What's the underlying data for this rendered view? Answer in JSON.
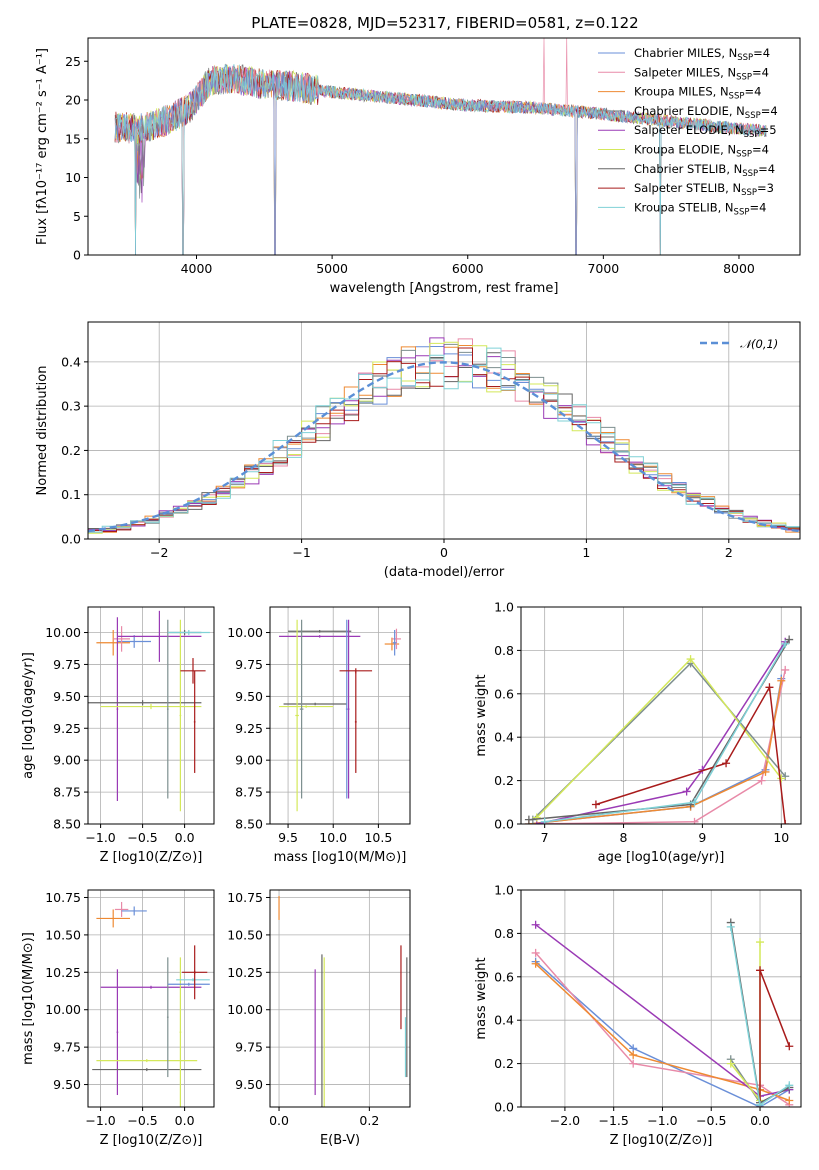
{
  "figure_title": "PLATE=0828, MJD=52317, FIBERID=0581, z=0.122",
  "colors": [
    "#6a8fd8",
    "#e88aa8",
    "#ee8a33",
    "#7d8f8f",
    "#9a3ab5",
    "#d4e85a",
    "#666666",
    "#a81b1b",
    "#7fd1d6"
  ],
  "chart_data": [
    {
      "id": "spectrum",
      "type": "line",
      "xlabel": "wavelength [Angstrom, rest frame]",
      "ylabel": "Flux [fλ10⁻¹⁷ erg cm⁻² s⁻¹ A⁻¹]",
      "xlim": [
        3200,
        8450
      ],
      "ylim": [
        0,
        28
      ],
      "xticks": [
        4000,
        5000,
        6000,
        7000,
        8000
      ],
      "yticks": [
        0,
        5,
        10,
        15,
        20,
        25
      ],
      "grid": false,
      "legend_position": "top-right",
      "legend": [
        {
          "name": "Chabrier MILES, N",
          "sub": "SSP",
          "val": "=4"
        },
        {
          "name": "Salpeter MILES, N",
          "sub": "SSP",
          "val": "=4"
        },
        {
          "name": "Kroupa MILES, N",
          "sub": "SSP",
          "val": "=4"
        },
        {
          "name": "Chabrier ELODIE, N",
          "sub": "SSP",
          "val": "=4"
        },
        {
          "name": "Salpeter ELODIE, N",
          "sub": "SSP",
          "val": "=5"
        },
        {
          "name": "Kroupa ELODIE, N",
          "sub": "SSP",
          "val": "=4"
        },
        {
          "name": "Chabrier STELIB, N",
          "sub": "SSP",
          "val": "=4"
        },
        {
          "name": "Salpeter STELIB, N",
          "sub": "SSP",
          "val": "=3"
        },
        {
          "name": "Kroupa STELIB, N",
          "sub": "SSP",
          "val": "=4"
        }
      ],
      "continuum": [
        [
          3400,
          16.5
        ],
        [
          3600,
          16.3
        ],
        [
          3800,
          17.5
        ],
        [
          3950,
          19
        ],
        [
          4100,
          22.5
        ],
        [
          4300,
          22.7
        ],
        [
          4500,
          22
        ],
        [
          4700,
          21.8
        ],
        [
          5000,
          21
        ],
        [
          5300,
          20.5
        ],
        [
          5600,
          20
        ],
        [
          6000,
          19.3
        ],
        [
          6500,
          19
        ],
        [
          7000,
          18.2
        ],
        [
          7500,
          17.2
        ],
        [
          8000,
          16.3
        ],
        [
          8200,
          16
        ]
      ],
      "absorption": [
        [
          3550,
          0
        ],
        [
          3900,
          0
        ],
        [
          4580,
          0
        ],
        [
          6800,
          0
        ],
        [
          7420,
          0
        ]
      ],
      "emission": [
        [
          6563,
          28
        ],
        [
          6730,
          28
        ]
      ]
    },
    {
      "id": "residuals",
      "type": "line",
      "xlabel": "(data-model)/error",
      "ylabel": "Normed distribution",
      "xlim": [
        -2.5,
        2.5
      ],
      "ylim": [
        0,
        0.49
      ],
      "xticks": [
        -2,
        -1,
        0,
        1,
        2
      ],
      "yticks": [
        0.0,
        0.1,
        0.2,
        0.3,
        0.4
      ],
      "grid": true,
      "legend_position": "top-right",
      "gauss_label": "𝒩(0,1)"
    },
    {
      "id": "age_vs_Z",
      "type": "scatter",
      "xlabel": "Z [log10(Z/Z⊙)]",
      "ylabel": "age  [log10(age/yr)]",
      "xlim": [
        -1.15,
        0.35
      ],
      "ylim": [
        8.5,
        10.2
      ],
      "xticks": [
        -1.0,
        -0.5,
        0.0
      ],
      "yticks": [
        8.5,
        8.75,
        9.0,
        9.25,
        9.5,
        9.75,
        10.0
      ],
      "grid": true,
      "points": [
        {
          "s": 0,
          "x": -0.6,
          "xe": 0.2,
          "y": 9.93,
          "ye": 0.05
        },
        {
          "s": 2,
          "x": -0.85,
          "xe": 0.2,
          "y": 9.92,
          "ye": 0.1
        },
        {
          "s": 1,
          "x": -0.75,
          "xe": 0.1,
          "y": 9.95,
          "ye": 0.1
        },
        {
          "s": 4,
          "x": -0.3,
          "xe": 0.5,
          "y": 9.97,
          "ye": 0.2
        },
        {
          "s": 4,
          "x": -0.8,
          "xe": 0.01,
          "y": 9.4,
          "ye": 0.72
        },
        {
          "s": 6,
          "x": -0.5,
          "xe": 0.7,
          "y": 9.45,
          "ye": 0.02
        },
        {
          "s": 5,
          "x": -0.4,
          "xe": 0.6,
          "y": 9.42,
          "ye": 0.02
        },
        {
          "s": 3,
          "x": -0.2,
          "xe": 0.01,
          "y": 9.4,
          "ye": 0.7
        },
        {
          "s": 5,
          "x": -0.05,
          "xe": 0.01,
          "y": 9.35,
          "ye": 0.75
        },
        {
          "s": 6,
          "x": 0.0,
          "xe": 0.2,
          "y": 10.0,
          "ye": 0.02
        },
        {
          "s": 8,
          "x": 0.05,
          "xe": 0.25,
          "y": 10.0,
          "ye": 0.02
        },
        {
          "s": 7,
          "x": 0.1,
          "xe": 0.15,
          "y": 9.7,
          "ye": 0.1
        },
        {
          "s": 7,
          "x": 0.12,
          "xe": 0.01,
          "y": 9.3,
          "ye": 0.4
        }
      ]
    },
    {
      "id": "age_vs_mass",
      "type": "scatter",
      "xlabel": "mass [log10(M/M⊙)]",
      "ylabel": "",
      "xlim": [
        9.3,
        10.85
      ],
      "ylim": [
        8.5,
        10.2
      ],
      "xticks": [
        9.5,
        10.0,
        10.5
      ],
      "yticks": [
        8.5,
        8.75,
        9.0,
        9.25,
        9.5,
        9.75,
        10.0
      ],
      "grid": true,
      "points": [
        {
          "s": 4,
          "x": 9.85,
          "xe": 0.45,
          "y": 9.97,
          "ye": 0.01
        },
        {
          "s": 6,
          "x": 9.85,
          "xe": 0.35,
          "y": 10.01,
          "ye": 0.01
        },
        {
          "s": 5,
          "x": 9.7,
          "xe": 0.3,
          "y": 9.42,
          "ye": 0.01
        },
        {
          "s": 6,
          "x": 9.8,
          "xe": 0.35,
          "y": 9.44,
          "ye": 0.01
        },
        {
          "s": 5,
          "x": 9.6,
          "xe": 0.02,
          "y": 9.35,
          "ye": 0.75
        },
        {
          "s": 3,
          "x": 9.65,
          "xe": 0.02,
          "y": 9.4,
          "ye": 0.7
        },
        {
          "s": 0,
          "x": 10.15,
          "xe": 0.01,
          "y": 9.4,
          "ye": 0.7
        },
        {
          "s": 4,
          "x": 10.17,
          "xe": 0.01,
          "y": 9.4,
          "ye": 0.7
        },
        {
          "s": 7,
          "x": 10.25,
          "xe": 0.18,
          "y": 9.7,
          "ye": 0.02
        },
        {
          "s": 7,
          "x": 10.25,
          "xe": 0.01,
          "y": 9.3,
          "ye": 0.4
        },
        {
          "s": 2,
          "x": 10.65,
          "xe": 0.08,
          "y": 9.91,
          "ye": 0.05
        },
        {
          "s": 1,
          "x": 10.7,
          "xe": 0.05,
          "y": 9.95,
          "ye": 0.08
        },
        {
          "s": 0,
          "x": 10.68,
          "xe": 0.02,
          "y": 9.92,
          "ye": 0.1
        }
      ]
    },
    {
      "id": "mw_vs_age",
      "type": "line",
      "xlabel": "age  [log10(age/yr)]",
      "ylabel": "mass weight",
      "xlim": [
        6.7,
        10.25
      ],
      "ylim": [
        0,
        1.0
      ],
      "xticks": [
        7,
        8,
        9,
        10
      ],
      "yticks": [
        0.0,
        0.2,
        0.4,
        0.6,
        0.8,
        1.0
      ],
      "grid": true,
      "series": [
        {
          "s": 0,
          "x": [
            6.8,
            8.85,
            9.8,
            10.0
          ],
          "y": [
            0.0,
            0.08,
            0.25,
            0.67
          ]
        },
        {
          "s": 1,
          "x": [
            6.8,
            8.9,
            9.75,
            10.05
          ],
          "y": [
            0.0,
            0.01,
            0.2,
            0.71
          ]
        },
        {
          "s": 2,
          "x": [
            6.8,
            8.85,
            9.8,
            10.0
          ],
          "y": [
            0.0,
            0.08,
            0.24,
            0.66
          ]
        },
        {
          "s": 3,
          "x": [
            6.85,
            8.85,
            10.05
          ],
          "y": [
            0.02,
            0.74,
            0.22
          ]
        },
        {
          "s": 4,
          "x": [
            6.9,
            8.8,
            9.0,
            10.05
          ],
          "y": [
            0.0,
            0.15,
            0.25,
            0.84
          ]
        },
        {
          "s": 5,
          "x": [
            6.9,
            8.85,
            10.0
          ],
          "y": [
            0.03,
            0.76,
            0.21
          ]
        },
        {
          "s": 6,
          "x": [
            6.8,
            8.85,
            10.1
          ],
          "y": [
            0.02,
            0.09,
            0.85
          ]
        },
        {
          "s": 7,
          "x": [
            7.65,
            9.3,
            9.85,
            10.05
          ],
          "y": [
            0.09,
            0.28,
            0.63,
            0.0
          ]
        },
        {
          "s": 8,
          "x": [
            7.0,
            8.9,
            10.05
          ],
          "y": [
            0.01,
            0.1,
            0.83
          ]
        }
      ]
    },
    {
      "id": "mass_vs_Z",
      "type": "scatter",
      "xlabel": "Z [log10(Z/Z⊙)]",
      "ylabel": "mass [log10(M/M⊙)]",
      "xlim": [
        -1.15,
        0.35
      ],
      "ylim": [
        9.35,
        10.8
      ],
      "xticks": [
        -1.0,
        -0.5,
        0.0
      ],
      "yticks": [
        9.5,
        9.75,
        10.0,
        10.25,
        10.5,
        10.75
      ],
      "grid": true,
      "points": [
        {
          "s": 1,
          "x": -0.75,
          "xe": 0.08,
          "y": 10.67,
          "ye": 0.05
        },
        {
          "s": 0,
          "x": -0.6,
          "xe": 0.15,
          "y": 10.66,
          "ye": 0.03
        },
        {
          "s": 2,
          "x": -0.85,
          "xe": 0.2,
          "y": 10.61,
          "ye": 0.06
        },
        {
          "s": 4,
          "x": -0.8,
          "xe": 0.01,
          "y": 9.85,
          "ye": 0.42
        },
        {
          "s": 4,
          "x": -0.4,
          "xe": 0.6,
          "y": 10.15,
          "ye": 0.01
        },
        {
          "s": 6,
          "x": -0.45,
          "xe": 0.65,
          "y": 9.6,
          "ye": 0.01
        },
        {
          "s": 5,
          "x": -0.45,
          "xe": 0.6,
          "y": 9.66,
          "ye": 0.01
        },
        {
          "s": 3,
          "x": -0.2,
          "xe": 0.01,
          "y": 9.95,
          "ye": 0.4
        },
        {
          "s": 5,
          "x": -0.05,
          "xe": 0.01,
          "y": 9.85,
          "ye": 0.5
        },
        {
          "s": 0,
          "x": 0.05,
          "xe": 0.25,
          "y": 10.17,
          "ye": 0.01
        },
        {
          "s": 8,
          "x": 0.1,
          "xe": 0.2,
          "y": 10.2,
          "ye": 0.01
        },
        {
          "s": 7,
          "x": 0.12,
          "xe": 0.15,
          "y": 10.25,
          "ye": 0.01
        },
        {
          "s": 7,
          "x": 0.12,
          "xe": 0.01,
          "y": 10.25,
          "ye": 0.18
        }
      ]
    },
    {
      "id": "mass_vs_EBV",
      "type": "scatter",
      "xlabel": "E(B-V)",
      "ylabel": "",
      "xlim": [
        -0.02,
        0.29
      ],
      "ylim": [
        9.35,
        10.8
      ],
      "xticks": [
        0.0,
        0.2
      ],
      "yticks": [
        9.5,
        9.75,
        10.0,
        10.25,
        10.5,
        10.75
      ],
      "grid": true,
      "points": [
        {
          "s": 2,
          "x": 0.0,
          "xe": 0.0,
          "y": 10.68,
          "ye": 0.08
        },
        {
          "s": 4,
          "x": 0.08,
          "xe": 0.0,
          "y": 9.85,
          "ye": 0.42
        },
        {
          "s": 6,
          "x": 0.095,
          "xe": 0.0,
          "y": 9.85,
          "ye": 0.52
        },
        {
          "s": 5,
          "x": 0.1,
          "xe": 0.0,
          "y": 9.85,
          "ye": 0.5
        },
        {
          "s": 7,
          "x": 0.27,
          "xe": 0.0,
          "y": 10.15,
          "ye": 0.28
        },
        {
          "s": 8,
          "x": 0.28,
          "xe": 0.0,
          "y": 9.75,
          "ye": 0.2
        },
        {
          "s": 6,
          "x": 0.283,
          "xe": 0.0,
          "y": 9.95,
          "ye": 0.4
        }
      ]
    },
    {
      "id": "mw_vs_Z",
      "type": "line",
      "xlabel": "Z [log10(Z/Z⊙)]",
      "ylabel": "mass weight",
      "xlim": [
        -2.45,
        0.42
      ],
      "ylim": [
        0,
        1.0
      ],
      "xticks": [
        -2.0,
        -1.5,
        -1.0,
        -0.5,
        0.0
      ],
      "yticks": [
        0.0,
        0.2,
        0.4,
        0.6,
        0.8,
        1.0
      ],
      "grid": true,
      "series": [
        {
          "s": 0,
          "x": [
            -2.3,
            -1.3,
            0.0,
            0.3
          ],
          "y": [
            0.67,
            0.27,
            0.0,
            0.08
          ]
        },
        {
          "s": 1,
          "x": [
            -2.3,
            -1.3,
            0.0,
            0.3
          ],
          "y": [
            0.71,
            0.2,
            0.1,
            0.01
          ]
        },
        {
          "s": 2,
          "x": [
            -2.3,
            -1.3,
            0.0,
            0.3
          ],
          "y": [
            0.66,
            0.24,
            0.08,
            0.03
          ]
        },
        {
          "s": 3,
          "x": [
            -0.3,
            0.0,
            0.3
          ],
          "y": [
            0.22,
            0.02,
            0.09
          ]
        },
        {
          "s": 4,
          "x": [
            -2.3,
            0.0,
            0.3
          ],
          "y": [
            0.84,
            0.05,
            0.08
          ]
        },
        {
          "s": 5,
          "x": [
            -0.3,
            0.0,
            0.0
          ],
          "y": [
            0.2,
            0.03,
            0.76
          ]
        },
        {
          "s": 6,
          "x": [
            -0.3,
            0.0,
            0.3
          ],
          "y": [
            0.85,
            0.02,
            0.09
          ]
        },
        {
          "s": 7,
          "x": [
            0.3,
            0.0,
            0.0
          ],
          "y": [
            0.28,
            0.63,
            0.0
          ]
        },
        {
          "s": 8,
          "x": [
            -0.3,
            0.0,
            0.3
          ],
          "y": [
            0.83,
            0.01,
            0.1
          ]
        }
      ]
    }
  ]
}
